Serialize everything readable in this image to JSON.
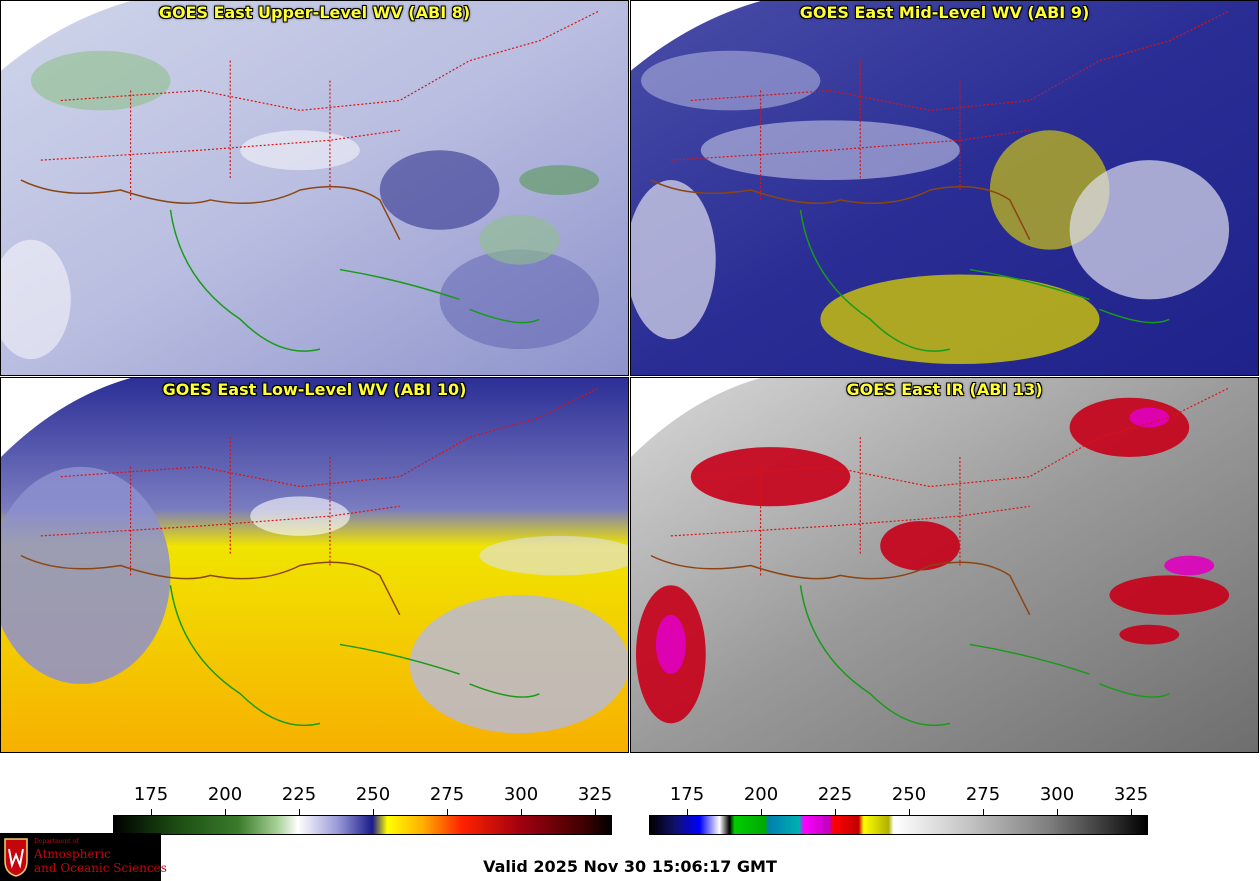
{
  "panels": [
    {
      "title": "GOES East Upper-Level WV (ABI 8)"
    },
    {
      "title": "GOES East Mid-Level WV (ABI 9)"
    },
    {
      "title": "GOES East Low-Level WV (ABI 10)"
    },
    {
      "title": "GOES East IR (ABI 13)"
    }
  ],
  "colorbars": {
    "wv": {
      "ticks": [
        "175",
        "200",
        "225",
        "250",
        "275",
        "300",
        "325"
      ]
    },
    "ir": {
      "ticks": [
        "175",
        "200",
        "225",
        "250",
        "275",
        "300",
        "325"
      ]
    }
  },
  "logo": {
    "line1": "Department of",
    "line2": "Atmospheric",
    "line3": "and Oceanic Sciences"
  },
  "valid_time": "Valid 2025 Nov 30 15:06:17 GMT",
  "colors": {
    "title_text": "#ffff33",
    "state_lines": "#e01010",
    "coastline": "#1a9a1a",
    "us_border": "#8b4513"
  }
}
